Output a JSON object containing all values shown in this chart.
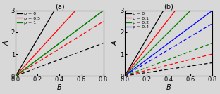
{
  "panel_a": {
    "title": "(a)",
    "xlabel": "B",
    "ylabel": "A",
    "xlim": [
      0.0,
      0.8
    ],
    "ylim": [
      0.0,
      3.0
    ],
    "xticks": [
      0.0,
      0.2,
      0.4,
      0.6,
      0.8
    ],
    "yticks": [
      0,
      1,
      2,
      3
    ],
    "legend_labels": [
      "ρ = 0",
      "ρ = 0.5",
      "ρ = 1"
    ],
    "legend_colors": [
      "black",
      "red",
      "green"
    ],
    "solid_slopes": [
      8.5,
      5.5,
      3.75
    ],
    "dashed_slopes": [
      1.875,
      3.125,
      3.75
    ]
  },
  "panel_b": {
    "title": "(b)",
    "xlabel": "B",
    "ylabel": "A",
    "xlim": [
      0.0,
      0.8
    ],
    "ylim": [
      0.0,
      3.0
    ],
    "xticks": [
      0.0,
      0.2,
      0.4,
      0.6,
      0.8
    ],
    "yticks": [
      0,
      1,
      2,
      3
    ],
    "legend_labels": [
      "ρ = 0",
      "ρ = 0.1",
      "ρ = 0.2",
      "ρ = 0.4"
    ],
    "legend_colors": [
      "black",
      "red",
      "green",
      "blue"
    ],
    "solid_slopes": [
      8.5,
      6.5,
      5.0,
      3.75
    ],
    "dashed_slopes": [
      0.75,
      1.25,
      1.875,
      3.0
    ]
  },
  "bg_color": "#d8d8d8",
  "fig_width": 3.12,
  "fig_height": 1.34,
  "dpi": 100
}
